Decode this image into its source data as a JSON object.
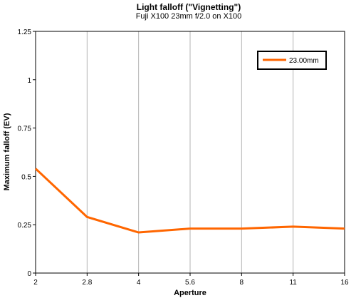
{
  "chart_data": {
    "type": "line",
    "title": "Light falloff (\"Vignetting\")",
    "subtitle": "Fuji X100 23mm f/2.0 on X100",
    "xlabel": "Aperture",
    "ylabel": "Maximum falloff (EV)",
    "categories": [
      "2",
      "2.8",
      "4",
      "5.6",
      "8",
      "11",
      "16"
    ],
    "ylim": [
      0,
      1.25
    ],
    "yticks": [
      "0",
      "0.25",
      "0.5",
      "0.75",
      "1",
      "1.25"
    ],
    "grid": "vertical",
    "legend_position": "top-right",
    "series": [
      {
        "name": "23.00mm",
        "color": "#ff6600",
        "values": [
          0.54,
          0.29,
          0.21,
          0.23,
          0.23,
          0.24,
          0.23
        ]
      }
    ]
  }
}
